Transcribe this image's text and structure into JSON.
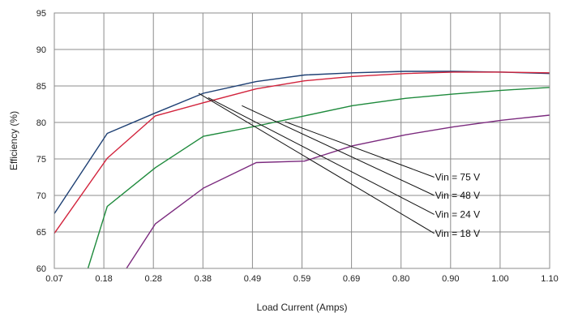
{
  "chart_data": {
    "type": "line",
    "xlabel": "Load Current (Amps)",
    "ylabel": "Efficiency (%)",
    "x_ticks": [
      "0.07",
      "0.18",
      "0.28",
      "0.38",
      "0.49",
      "0.59",
      "0.69",
      "0.80",
      "0.90",
      "1.00",
      "1.10"
    ],
    "y_ticks": [
      "60",
      "65",
      "70",
      "75",
      "80",
      "85",
      "90",
      "95"
    ],
    "xlim": [
      0.07,
      1.1
    ],
    "ylim": [
      60,
      95
    ],
    "grid": true,
    "legend": "callout labels with leader lines",
    "colors": {
      "vin18": "#7b2a7e",
      "vin24": "#1e8a3c",
      "vin48": "#d2233c",
      "vin75": "#1d3f73",
      "grid": "#8c8c8c"
    },
    "series": [
      {
        "name": "Vin = 75 V",
        "color": "#1d3f73",
        "points": [
          [
            0.07,
            67.5
          ],
          [
            0.18,
            78.5
          ],
          [
            0.28,
            81.3
          ],
          [
            0.38,
            84.0
          ],
          [
            0.49,
            85.6
          ],
          [
            0.59,
            86.5
          ],
          [
            0.69,
            86.8
          ],
          [
            0.8,
            87.0
          ],
          [
            0.9,
            87.0
          ],
          [
            1.0,
            86.9
          ],
          [
            1.1,
            86.7
          ]
        ]
      },
      {
        "name": "Vin = 48 V",
        "color": "#d2233c",
        "points": [
          [
            0.07,
            64.8
          ],
          [
            0.18,
            75.1
          ],
          [
            0.28,
            80.9
          ],
          [
            0.38,
            82.7
          ],
          [
            0.49,
            84.6
          ],
          [
            0.59,
            85.7
          ],
          [
            0.69,
            86.3
          ],
          [
            0.8,
            86.7
          ],
          [
            0.9,
            86.9
          ],
          [
            1.0,
            86.9
          ],
          [
            1.1,
            86.8
          ]
        ]
      },
      {
        "name": "Vin = 24 V",
        "color": "#1e8a3c",
        "points": [
          [
            0.14,
            60.0
          ],
          [
            0.18,
            68.5
          ],
          [
            0.28,
            73.8
          ],
          [
            0.38,
            78.1
          ],
          [
            0.49,
            79.5
          ],
          [
            0.59,
            80.9
          ],
          [
            0.69,
            82.3
          ],
          [
            0.8,
            83.3
          ],
          [
            0.9,
            83.9
          ],
          [
            1.0,
            84.4
          ],
          [
            1.1,
            84.8
          ]
        ]
      },
      {
        "name": "Vin = 18 V",
        "color": "#7b2a7e",
        "points": [
          [
            0.22,
            60.0
          ],
          [
            0.28,
            66.1
          ],
          [
            0.38,
            71.0
          ],
          [
            0.49,
            74.5
          ],
          [
            0.59,
            74.7
          ],
          [
            0.69,
            76.8
          ],
          [
            0.8,
            78.3
          ],
          [
            0.9,
            79.4
          ],
          [
            1.0,
            80.3
          ],
          [
            1.1,
            81.0
          ]
        ]
      }
    ],
    "callouts": [
      {
        "label": "Vin = 75 V",
        "anchor": [
          0.55,
          80.1
        ],
        "end": [
          0.86,
          72.5
        ]
      },
      {
        "label": "Vin = 48 V",
        "anchor": [
          0.46,
          82.3
        ],
        "end": [
          0.86,
          70.0
        ]
      },
      {
        "label": "Vin = 24 V",
        "anchor": [
          0.39,
          83.4
        ],
        "end": [
          0.86,
          67.4
        ]
      },
      {
        "label": "Vin = 18 V",
        "anchor": [
          0.37,
          84.0
        ],
        "end": [
          0.86,
          64.8
        ]
      }
    ]
  }
}
